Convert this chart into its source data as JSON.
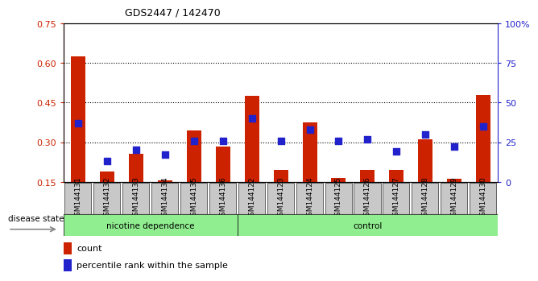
{
  "title": "GDS2447 / 142470",
  "samples": [
    "GSM144131",
    "GSM144132",
    "GSM144133",
    "GSM144134",
    "GSM144135",
    "GSM144136",
    "GSM144122",
    "GSM144123",
    "GSM144124",
    "GSM144125",
    "GSM144126",
    "GSM144127",
    "GSM144128",
    "GSM144129",
    "GSM144130"
  ],
  "count_values": [
    0.625,
    0.19,
    0.255,
    0.155,
    0.345,
    0.285,
    0.475,
    0.195,
    0.375,
    0.165,
    0.195,
    0.195,
    0.31,
    0.16,
    0.48
  ],
  "percentile_values": [
    37,
    13,
    20,
    17,
    26,
    26,
    40,
    26,
    33,
    26,
    27,
    19,
    30,
    22,
    35
  ],
  "group_divider": 6,
  "group_labels": [
    "nicotine dependence",
    "control"
  ],
  "group_color": "#90ee90",
  "ylim_left": [
    0.15,
    0.75
  ],
  "ylim_right": [
    0,
    100
  ],
  "yticks_left": [
    0.15,
    0.3,
    0.45,
    0.6,
    0.75
  ],
  "yticks_right": [
    0,
    25,
    50,
    75,
    100
  ],
  "bar_color": "#cc2200",
  "dot_color": "#2222cc",
  "bar_width": 0.5,
  "dot_size": 35,
  "background_color": "#ffffff",
  "tick_bg_color": "#c8c8c8",
  "legend_count_label": "count",
  "legend_pct_label": "percentile rank within the sample",
  "disease_state_label": "disease state"
}
